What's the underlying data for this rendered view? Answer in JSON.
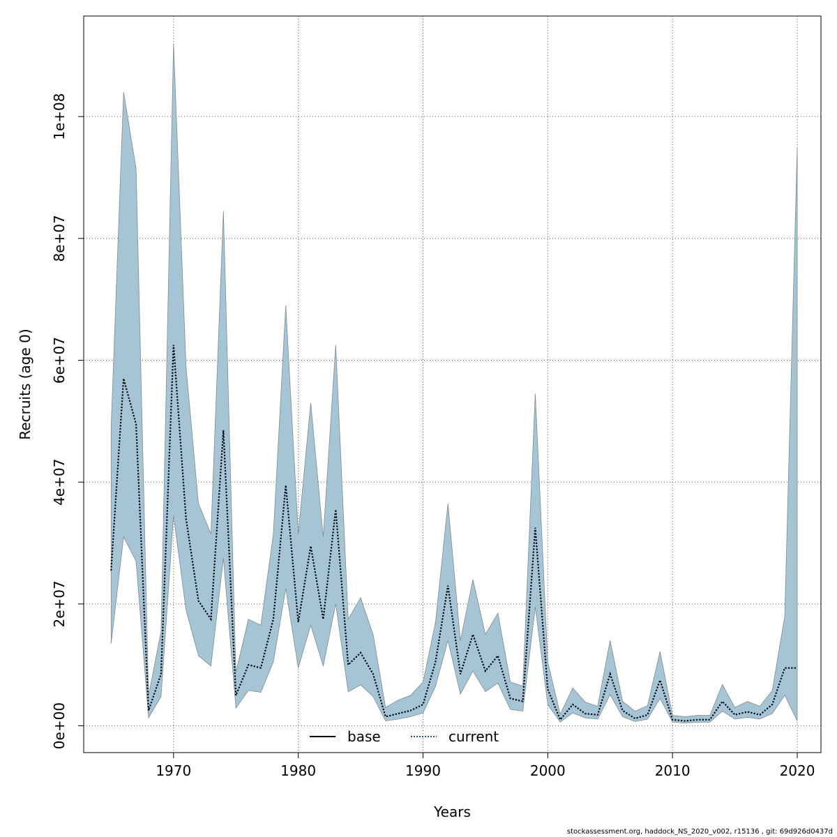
{
  "chart_data": {
    "type": "line",
    "xlabel": "Years",
    "ylabel": "Recruits (age 0)",
    "xlim": [
      1962.8,
      2021.9
    ],
    "ylim": [
      -4400000,
      116500000
    ],
    "x_ticks": [
      1970,
      1980,
      1990,
      2000,
      2010,
      2020
    ],
    "x_tick_labels": [
      "1970",
      "1980",
      "1990",
      "2000",
      "2010",
      "2020"
    ],
    "y_ticks": [
      0,
      20000000,
      40000000,
      60000000,
      80000000,
      100000000
    ],
    "y_tick_labels": [
      "0e+00",
      "2e+07",
      "4e+07",
      "6e+07",
      "8e+07",
      "1e+08"
    ],
    "grid": true,
    "legend_position": "bottom",
    "legend": [
      {
        "label": "base",
        "style": "solid",
        "color": "#000000"
      },
      {
        "label": "current",
        "style": "dotted",
        "color": "#1f4e79"
      }
    ],
    "x": [
      1965,
      1966,
      1967,
      1968,
      1969,
      1970,
      1971,
      1972,
      1973,
      1974,
      1975,
      1976,
      1977,
      1978,
      1979,
      1980,
      1981,
      1982,
      1983,
      1984,
      1985,
      1986,
      1987,
      1988,
      1989,
      1990,
      1991,
      1992,
      1993,
      1994,
      1995,
      1996,
      1997,
      1998,
      1999,
      2000,
      2001,
      2002,
      2003,
      2004,
      2005,
      2006,
      2007,
      2008,
      2009,
      2010,
      2011,
      2012,
      2013,
      2014,
      2015,
      2016,
      2017,
      2018,
      2019,
      2020
    ],
    "series": [
      {
        "name": "current",
        "values": [
          25500000,
          57000000,
          49500000,
          2500000,
          8500000,
          62500000,
          34000000,
          20500000,
          17500000,
          48500000,
          5000000,
          10000000,
          9500000,
          17500000,
          39500000,
          17000000,
          29500000,
          17500000,
          35500000,
          10000000,
          12000000,
          8500000,
          1500000,
          2000000,
          2500000,
          3500000,
          10500000,
          23000000,
          8500000,
          15000000,
          9000000,
          11500000,
          4500000,
          4000000,
          32500000,
          6000000,
          1000000,
          3500000,
          2000000,
          1800000,
          8500000,
          2500000,
          1200000,
          1800000,
          7500000,
          1000000,
          800000,
          1000000,
          1000000,
          4000000,
          1800000,
          2300000,
          1800000,
          3500000,
          9500000,
          9500000
        ],
        "lower": [
          13500000,
          31000000,
          27000000,
          1300000,
          4800000,
          34500000,
          19000000,
          11500000,
          9800000,
          27500000,
          2900000,
          5800000,
          5500000,
          10500000,
          22500000,
          9500000,
          16500000,
          9800000,
          20000000,
          5600000,
          6700000,
          4800000,
          800000,
          1100000,
          1500000,
          2100000,
          6500000,
          14000000,
          5200000,
          9000000,
          5600000,
          7000000,
          2700000,
          2400000,
          19500000,
          3500000,
          600000,
          2100000,
          1300000,
          1100000,
          5100000,
          1500000,
          700000,
          1100000,
          4500000,
          600000,
          450000,
          600000,
          600000,
          2400000,
          1100000,
          1400000,
          1100000,
          2000000,
          5000000,
          800000
        ],
        "upper": [
          49000000,
          104000000,
          91500000,
          5000000,
          15500000,
          112000000,
          59000000,
          36500000,
          31500000,
          84500000,
          8800000,
          17500000,
          16500000,
          31500000,
          69000000,
          31500000,
          53000000,
          31000000,
          62500000,
          17500000,
          21000000,
          15000000,
          3000000,
          4200000,
          5000000,
          7200000,
          17000000,
          36500000,
          14000000,
          24000000,
          15000000,
          18500000,
          7200000,
          6500000,
          54500000,
          10500000,
          1900000,
          6200000,
          3900000,
          3200000,
          14000000,
          4000000,
          2400000,
          3300000,
          12200000,
          1700000,
          1500000,
          1700000,
          1700000,
          6800000,
          3000000,
          4000000,
          3200000,
          5800000,
          18000000,
          95000000
        ]
      },
      {
        "name": "base",
        "values": [
          25500000,
          57000000,
          49500000,
          2500000,
          8500000,
          62500000,
          34000000,
          20500000,
          17500000,
          48500000,
          5000000,
          10000000,
          9500000,
          17500000,
          39500000,
          17000000,
          29500000,
          17500000,
          35500000,
          10000000,
          12000000,
          8500000,
          1500000,
          2000000,
          2500000,
          3500000,
          10500000,
          23000000,
          8500000,
          15000000,
          9000000,
          11500000,
          4500000,
          4000000,
          32500000,
          6000000,
          1000000,
          3500000,
          2000000,
          1800000,
          8500000,
          2500000,
          1200000,
          1800000,
          7500000,
          1000000,
          800000,
          1000000,
          1000000,
          4000000,
          1800000,
          2300000,
          1800000,
          3500000,
          9500000,
          9500000
        ]
      }
    ],
    "colors": {
      "band": "#a5c4d4",
      "band_edge": "#7f8c92",
      "current": "#1f4e79",
      "base": "#000000",
      "grid": "#555555"
    }
  },
  "footer": {
    "text": "stockassessment.org, haddock_NS_2020_v002, r15136 , git: 69d926d0437d"
  }
}
